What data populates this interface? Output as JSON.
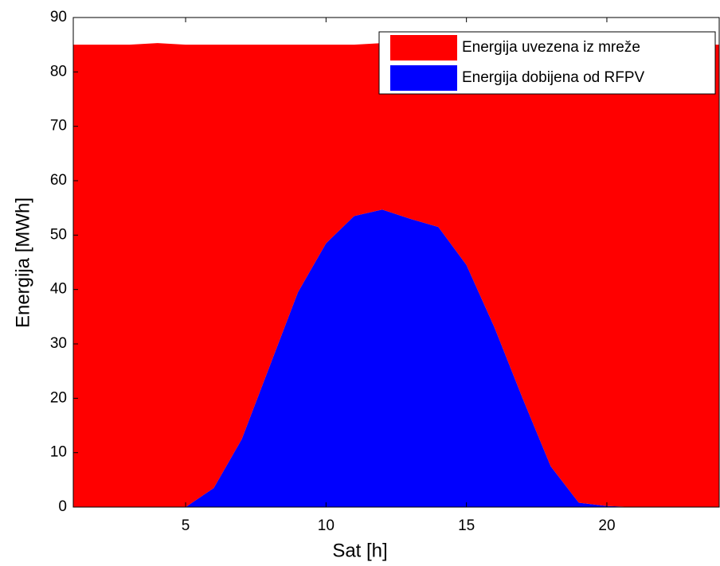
{
  "chart_data": {
    "type": "stacked_area",
    "xlabel": "Sat [h]",
    "ylabel": "Energija [MWh]",
    "x": [
      1,
      2,
      3,
      4,
      5,
      6,
      7,
      8,
      9,
      10,
      11,
      12,
      13,
      14,
      15,
      16,
      17,
      18,
      19,
      20,
      21,
      22,
      23,
      24
    ],
    "series": [
      {
        "name": "Energija uvezena iz mreže",
        "color": "#ff0000",
        "values": [
          85,
          85,
          85,
          85.3,
          85,
          81.5,
          72.5,
          59,
          45.5,
          36.5,
          31.5,
          30.6,
          32.3,
          33.7,
          40.5,
          52,
          65,
          77.5,
          84.2,
          84.8,
          85,
          85,
          85,
          85
        ]
      },
      {
        "name": "Energija dobijena od RFPV",
        "color": "#0000ff",
        "values": [
          0,
          0,
          0,
          0,
          0,
          3.5,
          12.5,
          26,
          39.5,
          48.5,
          53.5,
          54.7,
          53,
          51.5,
          44.5,
          33,
          20,
          7.5,
          0.8,
          0.2,
          0,
          0,
          0,
          0
        ]
      }
    ],
    "xlim": [
      1,
      24
    ],
    "xticks": [
      5,
      10,
      15,
      20
    ],
    "ylim": [
      0,
      90
    ],
    "yticks": [
      0,
      10,
      20,
      30,
      40,
      50,
      60,
      70,
      80,
      90
    ],
    "legend": "upper right"
  }
}
